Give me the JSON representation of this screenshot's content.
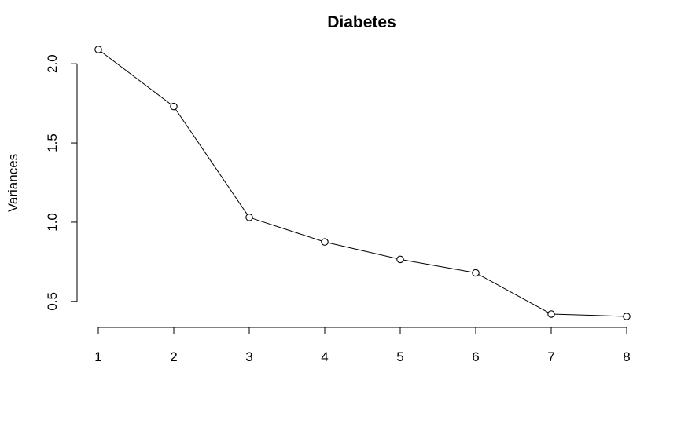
{
  "chart_data": {
    "type": "line",
    "title": "Diabetes",
    "xlabel": "",
    "ylabel": "Variances",
    "x": [
      1,
      2,
      3,
      4,
      5,
      6,
      7,
      8
    ],
    "y": [
      2.09,
      1.73,
      1.03,
      0.875,
      0.765,
      0.68,
      0.42,
      0.405
    ],
    "xticks": [
      1,
      2,
      3,
      4,
      5,
      6,
      7,
      8
    ],
    "yticks": [
      0.5,
      1.0,
      1.5,
      2.0
    ],
    "ytick_labels": [
      "0.5",
      "1.0",
      "1.5",
      "2.0"
    ],
    "xlim": [
      1,
      8
    ],
    "ylim": [
      0.405,
      2.09
    ],
    "markers": "open-circle",
    "grid": false,
    "legend": "none",
    "colors": {
      "line": "#000000",
      "marker_fill": "#ffffff"
    }
  }
}
